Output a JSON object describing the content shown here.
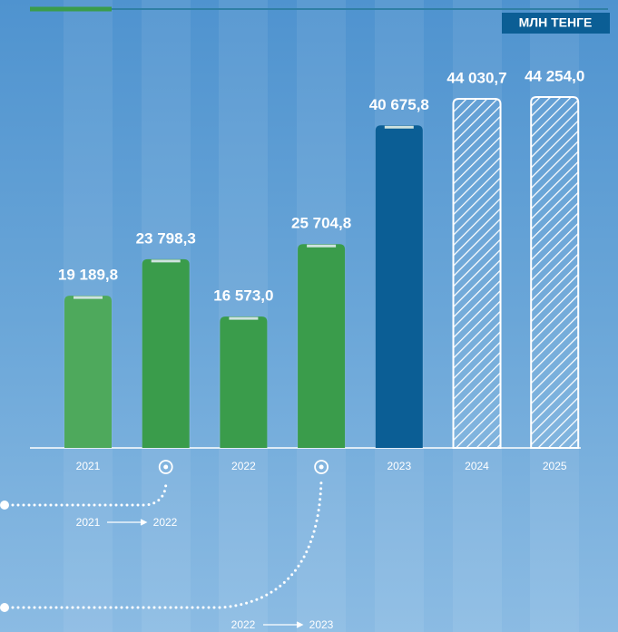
{
  "chart_data": {
    "type": "bar",
    "unit": "МЛН ТЕНГЕ",
    "categories": [
      "2021",
      null,
      "2022",
      null,
      "2023",
      "2024",
      "2025"
    ],
    "values": [
      19189.8,
      23798.3,
      16573.0,
      25704.8,
      40675.8,
      44030.7,
      44254.0
    ],
    "value_labels": [
      "19 189,8",
      "23 798,3",
      "16 573,0",
      "25 704,8",
      "40 675,8",
      "44 030,7",
      "44 254,0"
    ],
    "colors": [
      "#4ea95c",
      "#3a9c4b",
      "#3a9c4b",
      "#3a9c4b",
      "#0b5e95",
      "#ffffff",
      "#ffffff"
    ],
    "styles": [
      "solid",
      "solid",
      "solid",
      "solid",
      "solid",
      "hatched",
      "hatched"
    ],
    "annotations": [
      {
        "from": "2021",
        "to": "2022"
      },
      {
        "from": "2022",
        "to": "2023"
      }
    ]
  }
}
